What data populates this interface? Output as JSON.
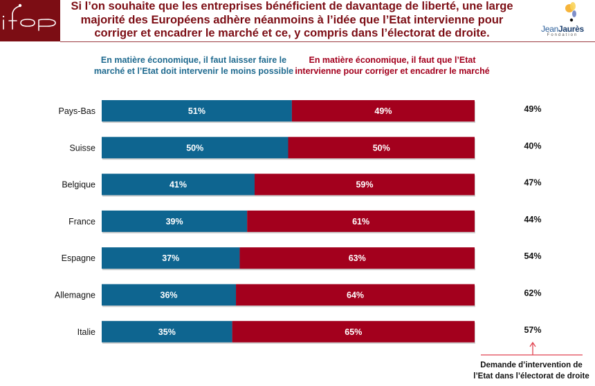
{
  "header": {
    "logo_text": "ifop",
    "title": "Si l’on souhaite que les entreprises bénéficient de davantage de liberté, une large majorité des Européens adhère néanmoins à l’idée que l’Etat intervienne pour corriger et encadrer le marché et ce, y compris dans l’électorat de droite.",
    "partner_logo": {
      "name_part1": "Jean",
      "name_part2": "Jaurès",
      "subtitle": "Fondation"
    }
  },
  "colors": {
    "brand": "#7c0d14",
    "series_left": "#0e6590",
    "series_right": "#a3001d",
    "note_arrow": "#e0424f"
  },
  "chart_data": {
    "type": "bar",
    "orientation": "horizontal-stacked-100",
    "title": "Si l’on souhaite que les entreprises bénéficient de davantage de liberté, une large majorité des Européens adhère néanmoins à l’idée que l’Etat intervienne pour corriger et encadrer le marché et ce, y compris dans l’électorat de droite.",
    "categories": [
      "Pays-Bas",
      "Suisse",
      "Belgique",
      "France",
      "Espagne",
      "Allemagne",
      "Italie"
    ],
    "series": [
      {
        "name": "En matière économique, il faut laisser faire le marché et l’Etat doit intervenir le moins possible",
        "values": [
          51,
          50,
          41,
          39,
          37,
          36,
          35
        ],
        "labels": [
          "51%",
          "50%",
          "41%",
          "39%",
          "37%",
          "36%",
          "35%"
        ]
      },
      {
        "name": "En matière économique, il faut que l’Etat intervienne pour corriger et encadrer le marché",
        "values": [
          49,
          50,
          59,
          61,
          63,
          64,
          65
        ],
        "labels": [
          "49%",
          "50%",
          "59%",
          "61%",
          "63%",
          "64%",
          "65%"
        ]
      }
    ],
    "right_column": {
      "name": "Demande d’intervention de l’Etat dans l’électorat de droite",
      "values": [
        49,
        40,
        47,
        44,
        54,
        62,
        57
      ],
      "labels": [
        "49%",
        "40%",
        "47%",
        "44%",
        "54%",
        "62%",
        "57%"
      ]
    },
    "xlim": [
      0,
      100
    ],
    "unit": "%",
    "grid": false,
    "legend_position": "top"
  }
}
